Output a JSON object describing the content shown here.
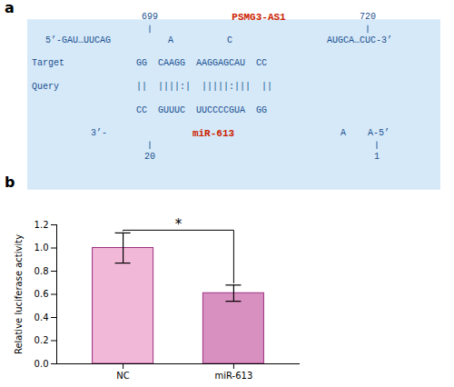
{
  "chart_data": {
    "type": "bar",
    "categories": [
      "NC",
      "miR-613"
    ],
    "values": [
      1.0,
      0.61
    ],
    "errors": [
      0.13,
      0.07
    ],
    "colors": [
      "#f2b8d8",
      "#d890c0"
    ],
    "ylabel": "Relative luciferase activity",
    "ylim": [
      0,
      1.2
    ],
    "yticks": [
      {
        "value": 0,
        "label": "0.0"
      },
      0.2,
      0.4,
      0.6,
      0.8,
      {
        "value": 1.0,
        "label": "1.0"
      },
      1.2
    ],
    "grid": false,
    "significance": "*",
    "annotations": [
      {
        "text": "a",
        "color": "#000000"
      },
      {
        "text": "699",
        "color": "#1a5090"
      },
      {
        "text": "PSMG3-AS1",
        "color": "#cc2200"
      },
      {
        "text": "720",
        "color": "#1a5090"
      },
      {
        "text": "5’-GAU…UUCAG",
        "color": "#1a5090"
      },
      {
        "text": "A",
        "color": "#1a5090"
      },
      {
        "text": "C",
        "color": "#1a5090"
      },
      {
        "text": "AUGCA…CUC-3’",
        "color": "#1a5090"
      },
      {
        "text": "Target",
        "color": "#1a5090"
      },
      {
        "text": "GG  CAAGG  AAGGAGCAU  CC",
        "color": "#1a5090"
      },
      {
        "text": "Query",
        "color": "#1a5090"
      },
      {
        "text": "||  ||||:|  |||||:|||  ||",
        "color": "#1a5090"
      },
      {
        "text": "CC  GUUUC  UUCCCCGUA  GG",
        "color": "#1a5090"
      },
      {
        "text": "3’-",
        "color": "#1a5090"
      },
      {
        "text": "miR-613",
        "color": "#cc2200"
      },
      {
        "text": "A",
        "color": "#1a5090"
      },
      {
        "text": "A-5’",
        "color": "#1a5090"
      },
      {
        "text": "20",
        "color": "#1a5090"
      },
      {
        "text": "1",
        "color": "#1a5090"
      },
      {
        "text": "b",
        "color": "#000000"
      }
    ]
  }
}
